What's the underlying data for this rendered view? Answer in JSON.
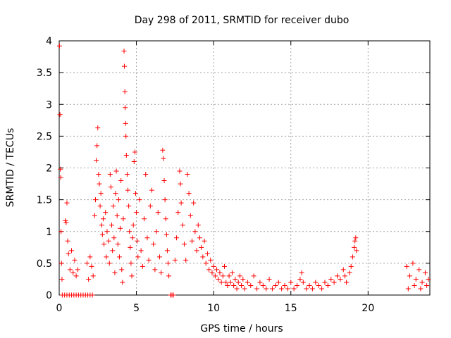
{
  "chart_data": {
    "type": "scatter",
    "title": "Day 298 of 2011, SRMTID for receiver dubo",
    "xlabel": "GPS time / hours",
    "ylabel": "SRMTID / TECUs",
    "xlim": [
      0,
      24
    ],
    "ylim": [
      0,
      4
    ],
    "xticks": [
      0,
      5,
      10,
      15,
      20
    ],
    "yticks": [
      0,
      0.5,
      1,
      1.5,
      2,
      2.5,
      3,
      3.5,
      4
    ],
    "xtick_labels": [
      "0",
      "5",
      "10",
      "15",
      "20"
    ],
    "ytick_labels": [
      "0",
      "0.5",
      "1",
      "1.5",
      "2",
      "2.5",
      "3",
      "3.5",
      "4"
    ],
    "grid": true,
    "marker": "plus",
    "color": "#ff0000",
    "series": [
      {
        "points": [
          [
            0.02,
            3.92
          ],
          [
            0.05,
            2.84
          ],
          [
            0.08,
            1.98
          ],
          [
            0.1,
            1.85
          ],
          [
            0.12,
            1.0
          ],
          [
            0.15,
            0.5
          ],
          [
            0.18,
            0.25
          ],
          [
            0.2,
            0.0
          ],
          [
            0.35,
            0.0
          ],
          [
            0.5,
            0.0
          ],
          [
            0.65,
            0.0
          ],
          [
            0.8,
            0.0
          ],
          [
            0.95,
            0.0
          ],
          [
            1.1,
            0.0
          ],
          [
            1.25,
            0.0
          ],
          [
            1.4,
            0.0
          ],
          [
            1.55,
            0.0
          ],
          [
            1.7,
            0.0
          ],
          [
            1.85,
            0.0
          ],
          [
            2.0,
            0.0
          ],
          [
            2.15,
            0.0
          ],
          [
            0.4,
            1.17
          ],
          [
            0.45,
            1.14
          ],
          [
            0.5,
            1.45
          ],
          [
            0.55,
            0.85
          ],
          [
            0.6,
            0.65
          ],
          [
            0.7,
            0.4
          ],
          [
            0.8,
            0.7
          ],
          [
            0.9,
            0.35
          ],
          [
            1.0,
            0.55
          ],
          [
            1.1,
            0.3
          ],
          [
            1.2,
            0.4
          ],
          [
            1.8,
            0.5
          ],
          [
            1.9,
            0.25
          ],
          [
            2.0,
            0.6
          ],
          [
            2.1,
            0.45
          ],
          [
            2.2,
            0.3
          ],
          [
            2.3,
            1.25
          ],
          [
            2.35,
            1.5
          ],
          [
            2.4,
            2.12
          ],
          [
            2.45,
            2.35
          ],
          [
            2.5,
            2.63
          ],
          [
            2.55,
            1.9
          ],
          [
            2.6,
            1.75
          ],
          [
            2.65,
            1.4
          ],
          [
            2.7,
            1.6
          ],
          [
            2.75,
            1.1
          ],
          [
            2.8,
            0.95
          ],
          [
            2.85,
            1.2
          ],
          [
            2.9,
            0.8
          ],
          [
            3.0,
            1.3
          ],
          [
            3.05,
            0.6
          ],
          [
            3.1,
            1.0
          ],
          [
            3.2,
            0.85
          ],
          [
            3.25,
            0.5
          ],
          [
            3.3,
            1.9
          ],
          [
            3.35,
            1.7
          ],
          [
            3.4,
            1.1
          ],
          [
            3.45,
            0.7
          ],
          [
            3.5,
            1.4
          ],
          [
            3.55,
            0.9
          ],
          [
            3.6,
            0.35
          ],
          [
            3.65,
            1.6
          ],
          [
            3.7,
            1.95
          ],
          [
            3.75,
            1.25
          ],
          [
            3.8,
            0.8
          ],
          [
            3.85,
            1.5
          ],
          [
            3.9,
            0.6
          ],
          [
            3.95,
            1.05
          ],
          [
            4.0,
            1.8
          ],
          [
            4.05,
            0.4
          ],
          [
            4.1,
            0.2
          ],
          [
            4.15,
            1.2
          ],
          [
            4.2,
            3.84
          ],
          [
            4.22,
            3.6
          ],
          [
            4.25,
            3.2
          ],
          [
            4.27,
            2.95
          ],
          [
            4.3,
            2.7
          ],
          [
            4.32,
            2.5
          ],
          [
            4.35,
            2.2
          ],
          [
            4.4,
            1.9
          ],
          [
            4.45,
            1.65
          ],
          [
            4.5,
            1.4
          ],
          [
            4.55,
            1.0
          ],
          [
            4.6,
            0.75
          ],
          [
            4.65,
            0.5
          ],
          [
            4.7,
            0.3
          ],
          [
            4.75,
            0.9
          ],
          [
            4.8,
            1.1
          ],
          [
            4.85,
            2.1
          ],
          [
            4.9,
            2.25
          ],
          [
            4.95,
            1.6
          ],
          [
            5.0,
            1.3
          ],
          [
            5.05,
            0.85
          ],
          [
            5.1,
            0.6
          ],
          [
            5.2,
            1.5
          ],
          [
            5.3,
            0.7
          ],
          [
            5.4,
            0.45
          ],
          [
            5.5,
            1.2
          ],
          [
            5.6,
            1.9
          ],
          [
            5.7,
            0.9
          ],
          [
            5.8,
            0.55
          ],
          [
            5.9,
            1.4
          ],
          [
            6.0,
            1.65
          ],
          [
            6.1,
            0.8
          ],
          [
            6.2,
            0.4
          ],
          [
            6.3,
            1.0
          ],
          [
            6.4,
            1.3
          ],
          [
            6.5,
            0.6
          ],
          [
            6.6,
            0.35
          ],
          [
            6.7,
            2.28
          ],
          [
            6.75,
            2.15
          ],
          [
            6.8,
            1.8
          ],
          [
            6.85,
            1.5
          ],
          [
            6.9,
            1.2
          ],
          [
            6.95,
            0.95
          ],
          [
            7.0,
            0.7
          ],
          [
            7.05,
            0.5
          ],
          [
            7.1,
            0.3
          ],
          [
            7.2,
            0.0
          ],
          [
            7.3,
            0.0
          ],
          [
            7.4,
            0.0
          ],
          [
            7.5,
            0.55
          ],
          [
            7.6,
            0.9
          ],
          [
            7.7,
            1.3
          ],
          [
            7.8,
            1.95
          ],
          [
            7.85,
            1.75
          ],
          [
            7.9,
            1.45
          ],
          [
            8.0,
            1.1
          ],
          [
            8.1,
            0.8
          ],
          [
            8.2,
            0.55
          ],
          [
            8.3,
            1.9
          ],
          [
            8.4,
            1.6
          ],
          [
            8.5,
            1.25
          ],
          [
            8.6,
            0.85
          ],
          [
            8.7,
            1.45
          ],
          [
            8.8,
            1.0
          ],
          [
            8.9,
            0.7
          ],
          [
            9.0,
            1.1
          ],
          [
            9.1,
            0.9
          ],
          [
            9.2,
            0.75
          ],
          [
            9.3,
            0.6
          ],
          [
            9.4,
            0.85
          ],
          [
            9.5,
            0.5
          ],
          [
            9.6,
            0.65
          ],
          [
            9.7,
            0.4
          ],
          [
            9.8,
            0.55
          ],
          [
            9.9,
            0.35
          ],
          [
            10.0,
            0.45
          ],
          [
            10.1,
            0.3
          ],
          [
            10.2,
            0.4
          ],
          [
            10.3,
            0.25
          ],
          [
            10.4,
            0.35
          ],
          [
            10.5,
            0.2
          ],
          [
            10.6,
            0.3
          ],
          [
            10.7,
            0.45
          ],
          [
            10.8,
            0.2
          ],
          [
            10.9,
            0.15
          ],
          [
            11.0,
            0.3
          ],
          [
            11.1,
            0.2
          ],
          [
            11.2,
            0.35
          ],
          [
            11.3,
            0.15
          ],
          [
            11.4,
            0.25
          ],
          [
            11.5,
            0.1
          ],
          [
            11.6,
            0.2
          ],
          [
            11.7,
            0.3
          ],
          [
            11.8,
            0.15
          ],
          [
            11.9,
            0.25
          ],
          [
            12.0,
            0.1
          ],
          [
            12.2,
            0.2
          ],
          [
            12.4,
            0.15
          ],
          [
            12.6,
            0.3
          ],
          [
            12.8,
            0.1
          ],
          [
            13.0,
            0.2
          ],
          [
            13.2,
            0.15
          ],
          [
            13.4,
            0.1
          ],
          [
            13.6,
            0.25
          ],
          [
            13.8,
            0.1
          ],
          [
            14.0,
            0.15
          ],
          [
            14.2,
            0.2
          ],
          [
            14.4,
            0.1
          ],
          [
            14.6,
            0.15
          ],
          [
            14.8,
            0.1
          ],
          [
            15.0,
            0.2
          ],
          [
            15.2,
            0.1
          ],
          [
            15.4,
            0.15
          ],
          [
            15.6,
            0.25
          ],
          [
            15.7,
            0.35
          ],
          [
            15.8,
            0.2
          ],
          [
            16.0,
            0.1
          ],
          [
            16.2,
            0.15
          ],
          [
            16.4,
            0.1
          ],
          [
            16.6,
            0.2
          ],
          [
            16.8,
            0.15
          ],
          [
            17.0,
            0.1
          ],
          [
            17.2,
            0.2
          ],
          [
            17.4,
            0.15
          ],
          [
            17.6,
            0.25
          ],
          [
            17.8,
            0.2
          ],
          [
            18.0,
            0.3
          ],
          [
            18.2,
            0.25
          ],
          [
            18.4,
            0.4
          ],
          [
            18.5,
            0.3
          ],
          [
            18.6,
            0.2
          ],
          [
            18.8,
            0.35
          ],
          [
            18.9,
            0.45
          ],
          [
            19.0,
            0.6
          ],
          [
            19.1,
            0.75
          ],
          [
            19.15,
            0.85
          ],
          [
            19.2,
            0.9
          ],
          [
            19.25,
            0.7
          ],
          [
            22.5,
            0.45
          ],
          [
            22.7,
            0.3
          ],
          [
            22.9,
            0.5
          ],
          [
            23.1,
            0.25
          ],
          [
            23.3,
            0.4
          ],
          [
            23.5,
            0.2
          ],
          [
            23.7,
            0.35
          ],
          [
            23.9,
            0.25
          ],
          [
            22.6,
            0.1
          ],
          [
            23.0,
            0.15
          ],
          [
            23.4,
            0.1
          ],
          [
            23.8,
            0.15
          ]
        ]
      }
    ]
  }
}
